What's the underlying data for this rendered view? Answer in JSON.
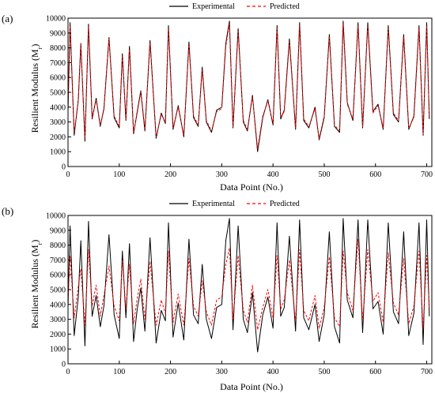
{
  "figure": {
    "panels": [
      {
        "label": "(a)",
        "legend": {
          "items": [
            "Experimental",
            "Predicted"
          ]
        },
        "xlabel": "Data Point (No.)",
        "ylabel": "Resilient Modulus (M",
        "ylabel_sub": "r",
        "ylabel_close": ")"
      },
      {
        "label": "(b)",
        "legend": {
          "items": [
            "Experimental",
            "Predicted"
          ]
        },
        "xlabel": "Data Point (No.)",
        "ylabel": "Resilient Modulus (M",
        "ylabel_sub": "r",
        "ylabel_close": ")"
      }
    ]
  },
  "colors": {
    "experimental": "#000000",
    "predicted": "#ff0000"
  },
  "chart_data": [
    {
      "type": "line",
      "title": "",
      "xlabel": "Data Point (No.)",
      "ylabel": "Resilient Modulus (Mr)",
      "xlim": [
        0,
        710
      ],
      "ylim": [
        0,
        10000
      ],
      "x_ticks": [
        0,
        100,
        200,
        300,
        400,
        500,
        600,
        700
      ],
      "y_ticks": [
        0,
        1000,
        2000,
        3000,
        4000,
        5000,
        6000,
        7000,
        8000,
        9000,
        10000
      ],
      "legend_position": "top-center",
      "grid": false,
      "series": [
        {
          "name": "Experimental",
          "style": "solid",
          "color": "#000000",
          "x": [
            0,
            4,
            12,
            20,
            25,
            33,
            40,
            47,
            55,
            63,
            70,
            80,
            90,
            100,
            106,
            113,
            120,
            128,
            135,
            142,
            150,
            160,
            172,
            182,
            190,
            196,
            205,
            215,
            226,
            236,
            245,
            254,
            262,
            270,
            280,
            290,
            300,
            308,
            315,
            322,
            332,
            342,
            350,
            360,
            370,
            380,
            390,
            400,
            408,
            415,
            422,
            432,
            444,
            452,
            460,
            470,
            482,
            490,
            500,
            510,
            520,
            530,
            537,
            545,
            556,
            566,
            575,
            585,
            595,
            605,
            615,
            625,
            635,
            645,
            655,
            665,
            675,
            685,
            693,
            700,
            705
          ],
          "y": [
            3800,
            9700,
            2100,
            4500,
            8300,
            1700,
            9600,
            3200,
            4600,
            2700,
            3900,
            8700,
            3300,
            2600,
            7600,
            3100,
            8100,
            2200,
            3700,
            5100,
            2400,
            8500,
            1900,
            3600,
            2900,
            9500,
            2500,
            4100,
            2000,
            8400,
            3300,
            2700,
            6700,
            3000,
            2300,
            3800,
            4000,
            8300,
            9800,
            2600,
            9300,
            3000,
            2400,
            4800,
            1000,
            3300,
            4500,
            2800,
            9500,
            3200,
            3800,
            8600,
            2500,
            9700,
            3100,
            2600,
            4000,
            1800,
            3300,
            8900,
            2700,
            2300,
            9800,
            4300,
            3100,
            9700,
            2600,
            9700,
            3700,
            4200,
            2500,
            9500,
            3500,
            3000,
            8900,
            2500,
            3400,
            9500,
            2100,
            9700,
            3200
          ]
        },
        {
          "name": "Predicted",
          "style": "dashed",
          "color": "#ff0000",
          "x": [
            0,
            4,
            12,
            20,
            25,
            33,
            40,
            47,
            55,
            63,
            70,
            80,
            90,
            100,
            106,
            113,
            120,
            128,
            135,
            142,
            150,
            160,
            172,
            182,
            190,
            196,
            205,
            215,
            226,
            236,
            245,
            254,
            262,
            270,
            280,
            290,
            300,
            308,
            315,
            322,
            332,
            342,
            350,
            360,
            370,
            380,
            390,
            400,
            408,
            415,
            422,
            432,
            444,
            452,
            460,
            470,
            482,
            490,
            500,
            510,
            520,
            530,
            537,
            545,
            556,
            566,
            575,
            585,
            595,
            605,
            615,
            625,
            635,
            645,
            655,
            665,
            675,
            685,
            693,
            700,
            705
          ],
          "y": [
            3700,
            9500,
            2300,
            4400,
            8200,
            1900,
            9400,
            3300,
            4500,
            2800,
            3800,
            8600,
            3400,
            2700,
            7400,
            3200,
            7900,
            2300,
            3600,
            5000,
            2500,
            8300,
            2000,
            3500,
            3000,
            9300,
            2600,
            4000,
            2100,
            8200,
            3400,
            2800,
            6500,
            3100,
            2400,
            3700,
            3900,
            8100,
            9600,
            2700,
            9100,
            3100,
            2500,
            4700,
            1200,
            3400,
            4400,
            2900,
            9300,
            3300,
            3700,
            8400,
            2600,
            9500,
            3200,
            2700,
            3900,
            1900,
            3400,
            8700,
            2800,
            2400,
            9600,
            4200,
            3200,
            9500,
            2700,
            9500,
            3600,
            4100,
            2600,
            9300,
            3600,
            3100,
            8700,
            2600,
            3300,
            9300,
            2200,
            9500,
            3300
          ]
        }
      ]
    },
    {
      "type": "line",
      "title": "",
      "xlabel": "Data Point (No.)",
      "ylabel": "Resilient Modulus (Mr)",
      "xlim": [
        0,
        710
      ],
      "ylim": [
        0,
        10000
      ],
      "x_ticks": [
        0,
        100,
        200,
        300,
        400,
        500,
        600,
        700
      ],
      "y_ticks": [
        0,
        1000,
        2000,
        3000,
        4000,
        5000,
        6000,
        7000,
        8000,
        9000,
        10000
      ],
      "legend_position": "top-center",
      "grid": false,
      "series": [
        {
          "name": "Experimental",
          "style": "solid",
          "color": "#000000",
          "x": [
            0,
            4,
            12,
            20,
            25,
            33,
            40,
            47,
            55,
            63,
            70,
            80,
            90,
            100,
            106,
            113,
            120,
            128,
            135,
            142,
            150,
            160,
            172,
            182,
            190,
            196,
            205,
            215,
            226,
            236,
            245,
            254,
            262,
            270,
            280,
            290,
            300,
            308,
            315,
            322,
            332,
            342,
            350,
            360,
            370,
            380,
            390,
            400,
            408,
            415,
            422,
            432,
            444,
            452,
            460,
            470,
            482,
            490,
            500,
            510,
            520,
            530,
            537,
            545,
            556,
            566,
            575,
            585,
            595,
            605,
            615,
            625,
            635,
            645,
            655,
            665,
            675,
            685,
            693,
            700,
            705
          ],
          "y": [
            3800,
            9300,
            1900,
            4500,
            8300,
            1200,
            9600,
            3200,
            4600,
            2500,
            3900,
            8700,
            3300,
            1700,
            7600,
            3100,
            8100,
            1500,
            3700,
            5100,
            2200,
            8500,
            1400,
            3600,
            2900,
            9500,
            1800,
            4100,
            1600,
            8400,
            3300,
            2700,
            6700,
            3000,
            1700,
            3800,
            4000,
            8300,
            9800,
            2300,
            9300,
            3000,
            2100,
            4800,
            800,
            3300,
            4500,
            2400,
            9500,
            3200,
            3800,
            8600,
            2200,
            9700,
            3100,
            2300,
            4000,
            1500,
            3300,
            8900,
            2500,
            1400,
            9800,
            4300,
            3100,
            9700,
            2100,
            9700,
            3700,
            4200,
            2000,
            9500,
            3500,
            2700,
            8900,
            1900,
            3400,
            9500,
            1300,
            9700,
            3200
          ]
        },
        {
          "name": "Predicted",
          "style": "dashed",
          "color": "#ff0000",
          "x": [
            0,
            4,
            12,
            20,
            25,
            33,
            40,
            47,
            55,
            63,
            70,
            80,
            90,
            100,
            106,
            113,
            120,
            128,
            135,
            142,
            150,
            160,
            172,
            182,
            190,
            196,
            205,
            215,
            226,
            236,
            245,
            254,
            262,
            270,
            280,
            290,
            300,
            308,
            315,
            322,
            332,
            342,
            350,
            360,
            370,
            380,
            390,
            400,
            408,
            415,
            422,
            432,
            444,
            452,
            460,
            470,
            482,
            490,
            500,
            510,
            520,
            530,
            537,
            545,
            556,
            566,
            575,
            585,
            595,
            605,
            615,
            625,
            635,
            645,
            655,
            665,
            675,
            685,
            693,
            700,
            705
          ],
          "y": [
            4200,
            7300,
            3100,
            5200,
            6400,
            2600,
            7700,
            3900,
            5300,
            3200,
            4600,
            6600,
            3900,
            2900,
            7000,
            3700,
            6700,
            2700,
            4400,
            5700,
            3000,
            6900,
            2600,
            4300,
            3400,
            7600,
            2800,
            4700,
            2600,
            7100,
            3900,
            3200,
            5600,
            3500,
            2600,
            4300,
            4500,
            6700,
            7800,
            3000,
            7300,
            3600,
            2800,
            5300,
            2300,
            3800,
            5000,
            3100,
            7300,
            3700,
            4300,
            7000,
            2900,
            7700,
            3600,
            2900,
            4600,
            2400,
            3800,
            7200,
            3100,
            2500,
            7600,
            4800,
            3600,
            8400,
            2900,
            7700,
            4200,
            4800,
            2800,
            7500,
            4100,
            3300,
            7100,
            2700,
            3900,
            7600,
            2400,
            7300,
            3700
          ]
        }
      ]
    }
  ]
}
